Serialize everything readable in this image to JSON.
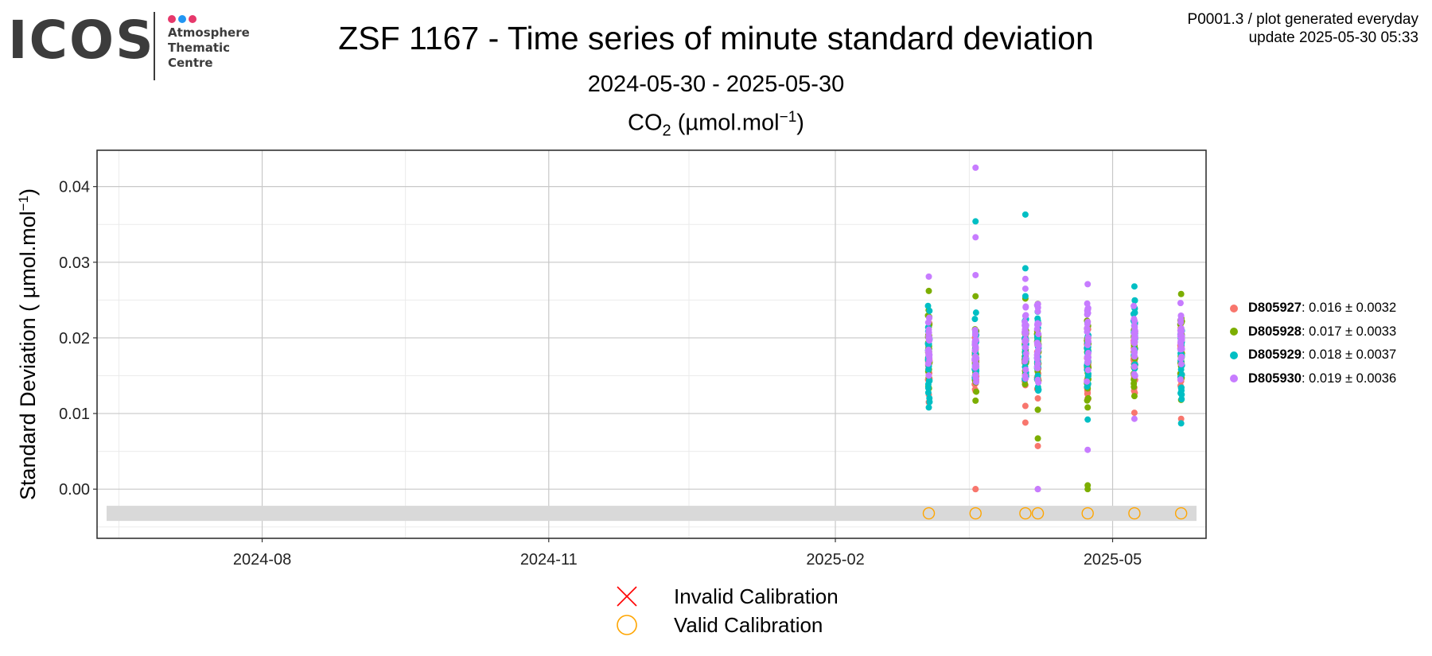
{
  "logo": {
    "wordmark": "ICOS",
    "lines": [
      "Atmosphere",
      "Thematic",
      "Centre"
    ],
    "dot_colors": [
      "#e6386b",
      "#2196f3",
      "#e6386b"
    ]
  },
  "header": {
    "title": "ZSF 1167 - Time series of minute standard deviation",
    "date_range": "2024-05-30 - 2025-05-30",
    "subtitle_base": "CO",
    "subtitle_sub": "2",
    "subtitle_rest": " (µmol.mol",
    "subtitle_sup": "−1",
    "subtitle_end": ")",
    "meta_line1": "P0001.3 / plot generated everyday",
    "meta_line2": "update  2025-05-30 05:33"
  },
  "chart_data": {
    "type": "scatter",
    "ylabel": "Standard Deviation ( µmol.mol",
    "ylabel_sup": "−1",
    "ylabel_end": ")",
    "xlim": [
      "2024-06-09",
      "2025-05-31"
    ],
    "ylim": [
      -0.0065,
      0.0448
    ],
    "x_ticks": [
      {
        "label": "2024-08",
        "date": "2024-08-01"
      },
      {
        "label": "2024-11",
        "date": "2024-11-01"
      },
      {
        "label": "2025-02",
        "date": "2025-02-01"
      },
      {
        "label": "2025-05",
        "date": "2025-05-01"
      }
    ],
    "y_ticks": [
      0.0,
      0.01,
      0.02,
      0.03,
      0.04
    ],
    "y_tick_labels": [
      "0.00",
      "0.01",
      "0.02",
      "0.03",
      "0.04"
    ],
    "calibration_band": [
      -0.0042,
      -0.0022
    ],
    "calibration_y": -0.0032,
    "calibration_dates": [
      "2025-03-03",
      "2025-03-18",
      "2025-04-03",
      "2025-04-07",
      "2025-04-23",
      "2025-05-08",
      "2025-05-23"
    ],
    "series": [
      {
        "name": "D805927",
        "stats": ": 0.016 ± 0.0032",
        "color": "#f8766d",
        "groups": [
          {
            "date": "2025-03-03",
            "min": 0.0115,
            "max": 0.0225,
            "extra": [
              0.0115,
              0.0125
            ]
          },
          {
            "date": "2025-03-18",
            "min": 0.0125,
            "max": 0.0215,
            "extra": [
              0.0,
              0.0
            ]
          },
          {
            "date": "2025-04-03",
            "min": 0.0125,
            "max": 0.0225,
            "extra": [
              0.0088,
              0.011
            ]
          },
          {
            "date": "2025-04-07",
            "min": 0.0118,
            "max": 0.0215,
            "extra": [
              0.0057,
              0.0,
              0.012
            ]
          },
          {
            "date": "2025-04-23",
            "min": 0.011,
            "max": 0.022,
            "extra": [
              0.012,
              0.0145
            ]
          },
          {
            "date": "2025-05-08",
            "min": 0.012,
            "max": 0.022,
            "extra": [
              0.0101
            ]
          },
          {
            "date": "2025-05-23",
            "min": 0.0125,
            "max": 0.022,
            "extra": [
              0.0093
            ]
          }
        ]
      },
      {
        "name": "D805928",
        "stats": ": 0.017 ± 0.0033",
        "color": "#7cae00",
        "groups": [
          {
            "date": "2025-03-03",
            "min": 0.012,
            "max": 0.025,
            "extra": [
              0.0262
            ]
          },
          {
            "date": "2025-03-18",
            "min": 0.0115,
            "max": 0.0235,
            "extra": [
              0.0255,
              0.0117
            ]
          },
          {
            "date": "2025-04-03",
            "min": 0.0125,
            "max": 0.024,
            "extra": [
              0.0252
            ]
          },
          {
            "date": "2025-04-07",
            "min": 0.013,
            "max": 0.023,
            "extra": [
              0.0245,
              0.0105,
              0.0067
            ]
          },
          {
            "date": "2025-04-23",
            "min": 0.011,
            "max": 0.023,
            "extra": [
              0.0005,
              0.0,
              0.0108
            ]
          },
          {
            "date": "2025-05-08",
            "min": 0.0125,
            "max": 0.0235,
            "extra": [
              0.0123
            ]
          },
          {
            "date": "2025-05-23",
            "min": 0.013,
            "max": 0.024,
            "extra": [
              0.0258,
              0.0118
            ]
          }
        ]
      },
      {
        "name": "D805929",
        "stats": ": 0.018 ± 0.0037",
        "color": "#00bfc4",
        "groups": [
          {
            "date": "2025-03-03",
            "min": 0.011,
            "max": 0.0255,
            "extra": [
              0.0108
            ]
          },
          {
            "date": "2025-03-18",
            "min": 0.0125,
            "max": 0.0245,
            "extra": [
              0.0354
            ]
          },
          {
            "date": "2025-04-03",
            "min": 0.0125,
            "max": 0.026,
            "extra": [
              0.0363,
              0.0292
            ]
          },
          {
            "date": "2025-04-07",
            "min": 0.0125,
            "max": 0.024,
            "extra": [
              0.015
            ]
          },
          {
            "date": "2025-04-23",
            "min": 0.012,
            "max": 0.0235,
            "extra": [
              0.0092
            ]
          },
          {
            "date": "2025-05-08",
            "min": 0.014,
            "max": 0.0265,
            "extra": [
              0.0268
            ]
          },
          {
            "date": "2025-05-23",
            "min": 0.011,
            "max": 0.024,
            "extra": [
              0.0087
            ]
          }
        ]
      },
      {
        "name": "D805930",
        "stats": ": 0.019 ± 0.0036",
        "color": "#c77cff",
        "groups": [
          {
            "date": "2025-03-03",
            "min": 0.014,
            "max": 0.025,
            "extra": [
              0.0281
            ]
          },
          {
            "date": "2025-03-18",
            "min": 0.013,
            "max": 0.025,
            "extra": [
              0.0425,
              0.0333,
              0.0283
            ]
          },
          {
            "date": "2025-04-03",
            "min": 0.013,
            "max": 0.026,
            "extra": [
              0.0278,
              0.0265
            ]
          },
          {
            "date": "2025-04-07",
            "min": 0.013,
            "max": 0.0255,
            "extra": [
              0.0,
              0.0
            ]
          },
          {
            "date": "2025-04-23",
            "min": 0.013,
            "max": 0.0265,
            "extra": [
              0.0271,
              0.0052
            ]
          },
          {
            "date": "2025-05-08",
            "min": 0.014,
            "max": 0.0255,
            "extra": [
              0.0093
            ]
          },
          {
            "date": "2025-05-23",
            "min": 0.014,
            "max": 0.025,
            "extra": []
          }
        ]
      }
    ]
  },
  "bottom_legend": {
    "invalid_label": "Invalid Calibration",
    "valid_label": "Valid Calibration",
    "invalid_color": "#ff0000",
    "valid_color": "#ffa500"
  },
  "colors": {
    "panel_border": "#333333",
    "grid_major": "#c8c8c8",
    "grid_minor": "#ebebeb",
    "calibration_band": "#d9d9d9"
  }
}
